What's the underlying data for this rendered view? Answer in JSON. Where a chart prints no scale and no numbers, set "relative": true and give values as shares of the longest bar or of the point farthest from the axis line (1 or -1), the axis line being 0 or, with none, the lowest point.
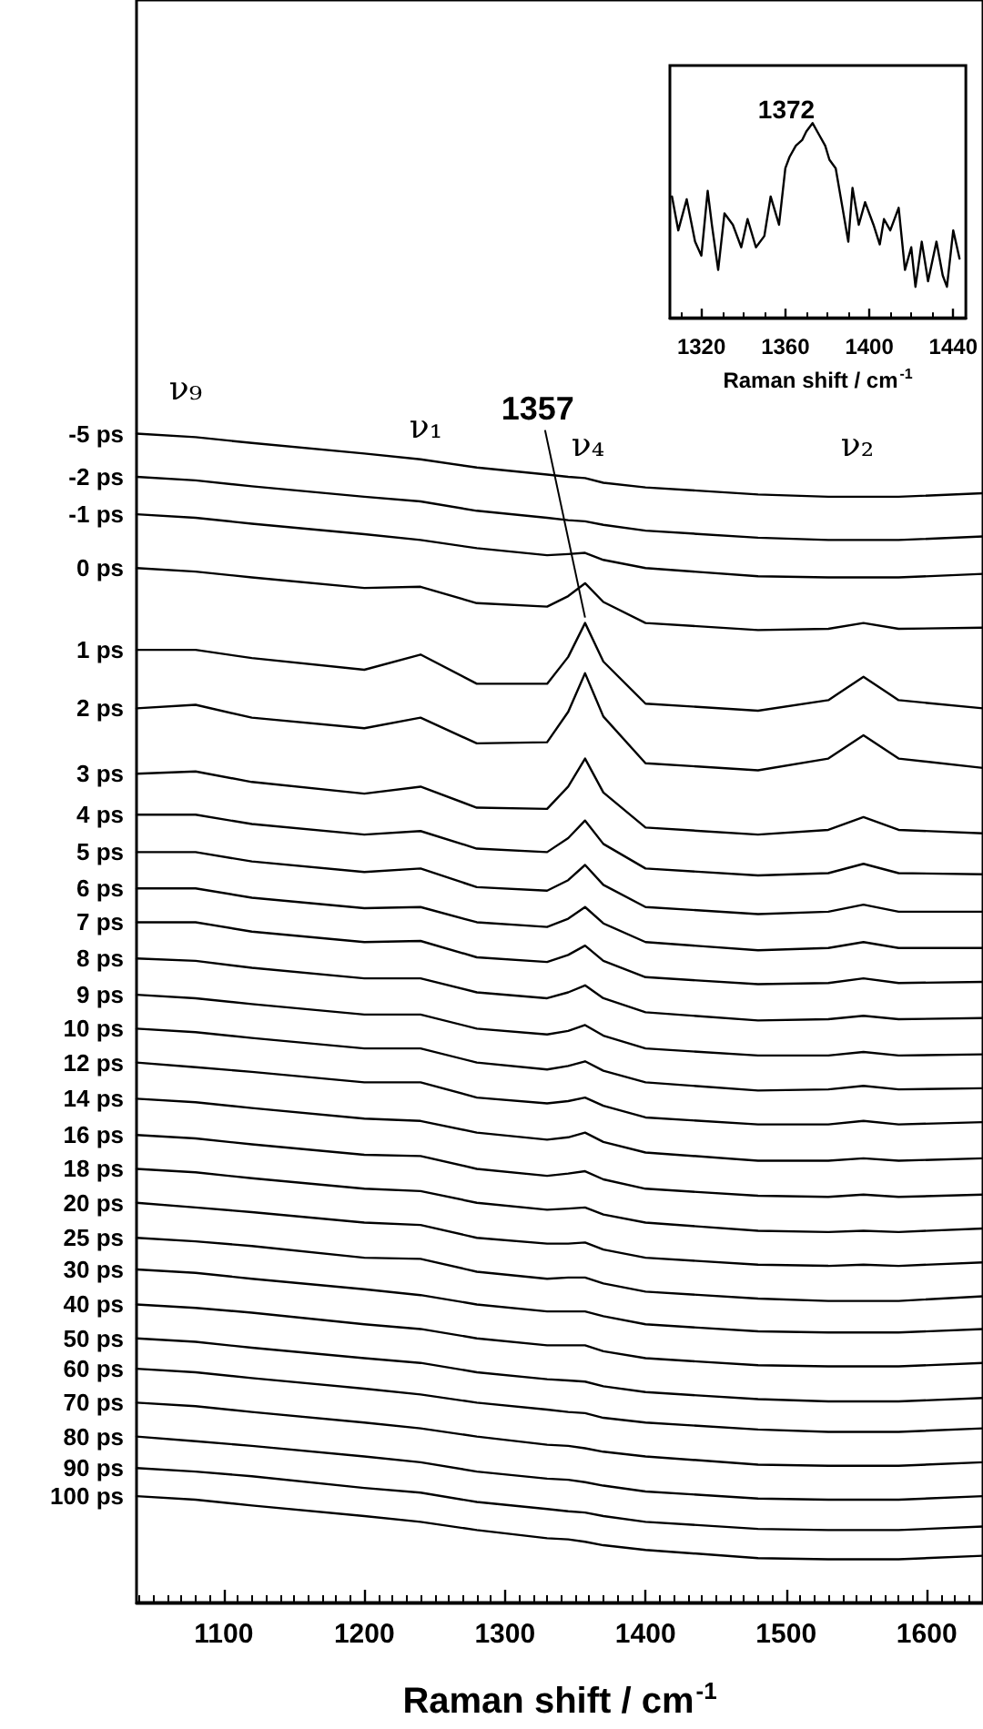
{
  "chart_data": [
    {
      "type": "line",
      "relative": true,
      "xlabel": "Raman shift / cm$^{-1}$",
      "xlim": [
        1038,
        1640
      ],
      "xticks": [
        {
          "value": 1040,
          "label": null
        },
        {
          "value": 1050,
          "label": null
        },
        {
          "value": 1060,
          "label": null
        },
        {
          "value": 1070,
          "label": null
        },
        {
          "value": 1080,
          "label": null
        },
        {
          "value": 1090,
          "label": null
        },
        1100,
        {
          "value": 1110,
          "label": null
        },
        {
          "value": 1120,
          "label": null
        },
        {
          "value": 1130,
          "label": null
        },
        {
          "value": 1140,
          "label": null
        },
        {
          "value": 1150,
          "label": null
        },
        {
          "value": 1160,
          "label": null
        },
        {
          "value": 1170,
          "label": null
        },
        {
          "value": 1180,
          "label": null
        },
        {
          "value": 1190,
          "label": null
        },
        1200,
        {
          "value": 1210,
          "label": null
        },
        {
          "value": 1220,
          "label": null
        },
        {
          "value": 1230,
          "label": null
        },
        {
          "value": 1240,
          "label": null
        },
        {
          "value": 1250,
          "label": null
        },
        {
          "value": 1260,
          "label": null
        },
        {
          "value": 1270,
          "label": null
        },
        {
          "value": 1280,
          "label": null
        },
        {
          "value": 1290,
          "label": null
        },
        1300,
        {
          "value": 1310,
          "label": null
        },
        {
          "value": 1320,
          "label": null
        },
        {
          "value": 1330,
          "label": null
        },
        {
          "value": 1340,
          "label": null
        },
        {
          "value": 1350,
          "label": null
        },
        {
          "value": 1360,
          "label": null
        },
        {
          "value": 1370,
          "label": null
        },
        {
          "value": 1380,
          "label": null
        },
        {
          "value": 1390,
          "label": null
        },
        1400,
        {
          "value": 1410,
          "label": null
        },
        {
          "value": 1420,
          "label": null
        },
        {
          "value": 1430,
          "label": null
        },
        {
          "value": 1440,
          "label": null
        },
        {
          "value": 1450,
          "label": null
        },
        {
          "value": 1460,
          "label": null
        },
        {
          "value": 1470,
          "label": null
        },
        {
          "value": 1480,
          "label": null
        },
        {
          "value": 1490,
          "label": null
        },
        1500,
        {
          "value": 1510,
          "label": null
        },
        {
          "value": 1520,
          "label": null
        },
        {
          "value": 1530,
          "label": null
        },
        {
          "value": 1540,
          "label": null
        },
        {
          "value": 1550,
          "label": null
        },
        {
          "value": 1560,
          "label": null
        },
        {
          "value": 1570,
          "label": null
        },
        {
          "value": 1580,
          "label": null
        },
        {
          "value": 1590,
          "label": null
        },
        1600,
        {
          "value": 1610,
          "label": null
        },
        {
          "value": 1620,
          "label": null
        },
        {
          "value": 1630,
          "label": null
        }
      ],
      "color": "#000000",
      "marker": "none",
      "annotations": [
        "ν₉",
        "ν₁",
        "ν₄",
        "ν₂",
        {
          "text": "1357",
          "x": 1357,
          "y": 0.838
        }
      ],
      "x": [
        1038,
        1080,
        1120,
        1200,
        1240,
        1280,
        1330,
        1345,
        1357,
        1370,
        1400,
        1480,
        1530,
        1555,
        1580,
        1640
      ],
      "series": [
        {
          "name": "-5 ps",
          "values": [
            1,
            0.997,
            0.992,
            0.983,
            0.978,
            0.971,
            0.965,
            0.963,
            0.962,
            0.958,
            0.954,
            0.948,
            0.946,
            0.946,
            0.946,
            0.949
          ]
        },
        {
          "name": "-2 ps",
          "values": [
            0.963,
            0.96,
            0.955,
            0.946,
            0.942,
            0.934,
            0.928,
            0.926,
            0.925,
            0.922,
            0.917,
            0.911,
            0.909,
            0.909,
            0.909,
            0.912
          ]
        },
        {
          "name": "-1 ps",
          "values": [
            0.931,
            0.928,
            0.923,
            0.914,
            0.909,
            0.902,
            0.896,
            0.897,
            0.898,
            0.892,
            0.885,
            0.878,
            0.877,
            0.877,
            0.877,
            0.88
          ]
        },
        {
          "name": "0 ps",
          "values": [
            0.885,
            0.882,
            0.877,
            0.868,
            0.869,
            0.855,
            0.852,
            0.861,
            0.872,
            0.856,
            0.838,
            0.832,
            0.833,
            0.838,
            0.833,
            0.834
          ]
        },
        {
          "name": "1 ps",
          "values": [
            0.815,
            0.815,
            0.808,
            0.798,
            0.811,
            0.786,
            0.786,
            0.809,
            0.838,
            0.805,
            0.769,
            0.763,
            0.772,
            0.792,
            0.772,
            0.765
          ]
        },
        {
          "name": "2 ps",
          "values": [
            0.765,
            0.768,
            0.757,
            0.748,
            0.757,
            0.735,
            0.736,
            0.762,
            0.795,
            0.758,
            0.718,
            0.712,
            0.722,
            0.742,
            0.722,
            0.714
          ]
        },
        {
          "name": "3 ps",
          "values": [
            0.709,
            0.711,
            0.702,
            0.692,
            0.698,
            0.68,
            0.679,
            0.698,
            0.722,
            0.693,
            0.663,
            0.657,
            0.661,
            0.672,
            0.661,
            0.658
          ]
        },
        {
          "name": "4 ps",
          "values": [
            0.674,
            0.674,
            0.666,
            0.657,
            0.66,
            0.645,
            0.642,
            0.654,
            0.669,
            0.649,
            0.628,
            0.622,
            0.624,
            0.632,
            0.624,
            0.623
          ]
        },
        {
          "name": "5 ps",
          "values": [
            0.642,
            0.642,
            0.634,
            0.625,
            0.628,
            0.612,
            0.609,
            0.618,
            0.631,
            0.614,
            0.595,
            0.589,
            0.591,
            0.597,
            0.591,
            0.591
          ]
        },
        {
          "name": "6 ps",
          "values": [
            0.611,
            0.611,
            0.603,
            0.594,
            0.595,
            0.582,
            0.578,
            0.585,
            0.595,
            0.581,
            0.565,
            0.558,
            0.56,
            0.565,
            0.56,
            0.56
          ]
        },
        {
          "name": "7 ps",
          "values": [
            0.582,
            0.582,
            0.574,
            0.565,
            0.566,
            0.552,
            0.548,
            0.554,
            0.562,
            0.549,
            0.535,
            0.529,
            0.53,
            0.534,
            0.53,
            0.531
          ]
        },
        {
          "name": "8 ps",
          "values": [
            0.551,
            0.549,
            0.543,
            0.534,
            0.534,
            0.522,
            0.517,
            0.522,
            0.528,
            0.517,
            0.505,
            0.498,
            0.499,
            0.502,
            0.499,
            0.5
          ]
        },
        {
          "name": "9 ps",
          "values": [
            0.52,
            0.517,
            0.512,
            0.503,
            0.503,
            0.491,
            0.486,
            0.489,
            0.494,
            0.485,
            0.474,
            0.468,
            0.468,
            0.471,
            0.468,
            0.469
          ]
        },
        {
          "name": "10 ps",
          "values": [
            0.491,
            0.488,
            0.483,
            0.474,
            0.474,
            0.462,
            0.456,
            0.459,
            0.463,
            0.455,
            0.445,
            0.438,
            0.439,
            0.442,
            0.439,
            0.44
          ]
        },
        {
          "name": "12 ps",
          "values": [
            0.462,
            0.458,
            0.454,
            0.445,
            0.445,
            0.432,
            0.427,
            0.429,
            0.432,
            0.425,
            0.415,
            0.409,
            0.409,
            0.412,
            0.409,
            0.411
          ]
        },
        {
          "name": "14 ps",
          "values": [
            0.431,
            0.428,
            0.423,
            0.414,
            0.412,
            0.402,
            0.396,
            0.398,
            0.402,
            0.394,
            0.385,
            0.378,
            0.378,
            0.38,
            0.378,
            0.38
          ]
        },
        {
          "name": "16 ps",
          "values": [
            0.4,
            0.397,
            0.392,
            0.383,
            0.382,
            0.371,
            0.365,
            0.367,
            0.369,
            0.362,
            0.354,
            0.348,
            0.347,
            0.349,
            0.347,
            0.349
          ]
        },
        {
          "name": "18 ps",
          "values": [
            0.371,
            0.368,
            0.363,
            0.354,
            0.352,
            0.342,
            0.336,
            0.337,
            0.338,
            0.332,
            0.325,
            0.318,
            0.317,
            0.318,
            0.317,
            0.32
          ]
        },
        {
          "name": "20 ps",
          "values": [
            0.342,
            0.338,
            0.334,
            0.325,
            0.323,
            0.312,
            0.307,
            0.307,
            0.308,
            0.302,
            0.295,
            0.289,
            0.288,
            0.289,
            0.288,
            0.291
          ]
        },
        {
          "name": "25 ps",
          "values": [
            0.312,
            0.309,
            0.305,
            0.295,
            0.294,
            0.283,
            0.277,
            0.278,
            0.278,
            0.273,
            0.266,
            0.26,
            0.258,
            0.258,
            0.258,
            0.262
          ]
        },
        {
          "name": "30 ps",
          "values": [
            0.285,
            0.282,
            0.277,
            0.268,
            0.263,
            0.255,
            0.249,
            0.249,
            0.249,
            0.245,
            0.238,
            0.232,
            0.231,
            0.231,
            0.231,
            0.234
          ]
        },
        {
          "name": "40 ps",
          "values": [
            0.255,
            0.252,
            0.248,
            0.238,
            0.234,
            0.226,
            0.22,
            0.22,
            0.22,
            0.215,
            0.209,
            0.203,
            0.202,
            0.202,
            0.202,
            0.205
          ]
        },
        {
          "name": "50 ps",
          "values": [
            0.226,
            0.223,
            0.218,
            0.209,
            0.205,
            0.197,
            0.191,
            0.19,
            0.189,
            0.185,
            0.18,
            0.174,
            0.172,
            0.172,
            0.172,
            0.175
          ]
        },
        {
          "name": "60 ps",
          "values": [
            0.2,
            0.197,
            0.192,
            0.183,
            0.178,
            0.171,
            0.165,
            0.163,
            0.162,
            0.158,
            0.154,
            0.148,
            0.146,
            0.146,
            0.146,
            0.149
          ]
        },
        {
          "name": "70 ps",
          "values": [
            0.171,
            0.168,
            0.163,
            0.154,
            0.149,
            0.142,
            0.135,
            0.134,
            0.132,
            0.129,
            0.125,
            0.118,
            0.117,
            0.117,
            0.117,
            0.12
          ]
        },
        {
          "name": "80 ps",
          "values": [
            0.142,
            0.138,
            0.134,
            0.125,
            0.12,
            0.112,
            0.106,
            0.105,
            0.103,
            0.1,
            0.095,
            0.089,
            0.088,
            0.088,
            0.088,
            0.091
          ]
        },
        {
          "name": "90 ps",
          "values": [
            0.115,
            0.112,
            0.108,
            0.098,
            0.094,
            0.086,
            0.08,
            0.078,
            0.077,
            0.074,
            0.069,
            0.063,
            0.062,
            0.062,
            0.062,
            0.065
          ]
        },
        {
          "name": "100 ps",
          "values": [
            0.091,
            0.088,
            0.083,
            0.074,
            0.069,
            0.062,
            0.055,
            0.054,
            0.052,
            0.049,
            0.045,
            0.038,
            0.037,
            0.037,
            0.037,
            0.04
          ]
        }
      ]
    },
    {
      "type": "line",
      "relative": true,
      "xlabel": "Raman shift / cm$^{-1}$",
      "xlim": [
        1305,
        1446
      ],
      "xticks": [
        {
          "value": 1310,
          "label": null
        },
        1320,
        {
          "value": 1330,
          "label": null
        },
        {
          "value": 1340,
          "label": null
        },
        {
          "value": 1350,
          "label": null
        },
        1360,
        {
          "value": 1370,
          "label": null
        },
        {
          "value": 1380,
          "label": null
        },
        {
          "value": 1390,
          "label": null
        },
        1400,
        {
          "value": 1410,
          "label": null
        },
        {
          "value": 1420,
          "label": null
        },
        {
          "value": 1430,
          "label": null
        },
        1440
      ],
      "color": "#000000",
      "marker": "none",
      "annotations": [
        "1372"
      ],
      "x": [
        1306,
        1309,
        1313,
        1317,
        1320,
        1323,
        1325,
        1328,
        1331,
        1335,
        1339,
        1342,
        1346,
        1350,
        1353,
        1357,
        1360,
        1362,
        1365,
        1368,
        1370,
        1373,
        1376,
        1379,
        1381,
        1384,
        1387,
        1390,
        1392,
        1395,
        1398,
        1402,
        1405,
        1407,
        1410,
        1414,
        1417,
        1420,
        1422,
        1425,
        1428,
        1432,
        1435,
        1437,
        1440,
        1443
      ],
      "values": [
        0.623,
        0.449,
        0.609,
        0.391,
        0.319,
        0.652,
        0.478,
        0.246,
        0.536,
        0.478,
        0.362,
        0.507,
        0.362,
        0.42,
        0.623,
        0.478,
        0.768,
        0.826,
        0.884,
        0.913,
        0.957,
        1,
        0.942,
        0.884,
        0.812,
        0.768,
        0.58,
        0.391,
        0.667,
        0.478,
        0.594,
        0.478,
        0.377,
        0.507,
        0.449,
        0.565,
        0.246,
        0.362,
        0.159,
        0.391,
        0.188,
        0.391,
        0.217,
        0.159,
        0.449,
        0.304
      ]
    }
  ]
}
